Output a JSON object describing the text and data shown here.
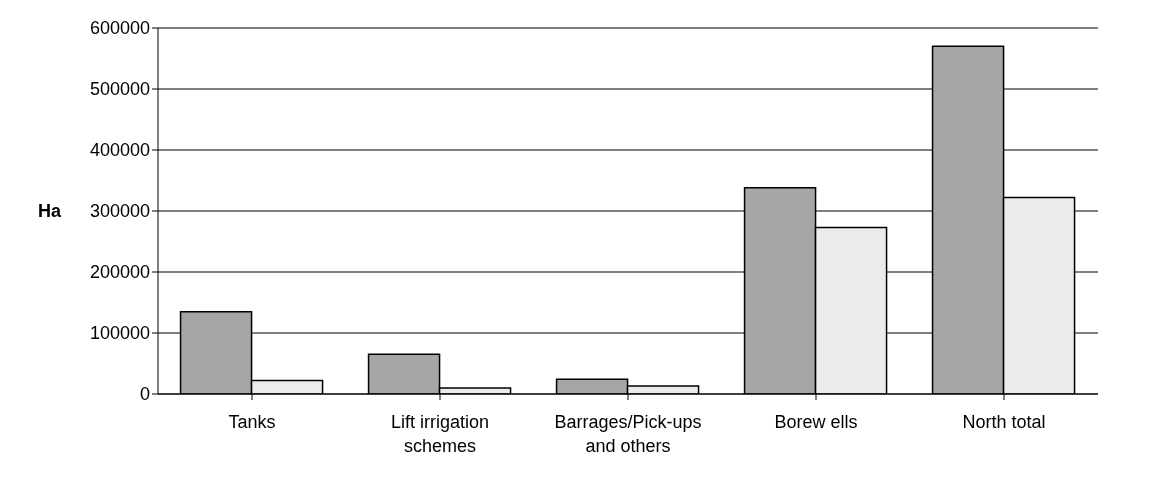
{
  "chart_data": {
    "type": "bar",
    "ylabel": "Ha",
    "categories": [
      "Tanks",
      "Lift irrigation schemes",
      "Barrages/Pick-ups and others",
      "Borew ells",
      "North total"
    ],
    "series": [
      {
        "color": "#a6a6a6",
        "values": [
          135000,
          65000,
          24000,
          338000,
          570000
        ]
      },
      {
        "color": "#ebebeb",
        "values": [
          22000,
          10000,
          13000,
          273000,
          322000
        ]
      }
    ],
    "ylim": [
      0,
      600000
    ],
    "yticks": [
      0,
      100000,
      200000,
      300000,
      400000,
      500000,
      600000
    ],
    "grid": "y",
    "legend": false
  }
}
